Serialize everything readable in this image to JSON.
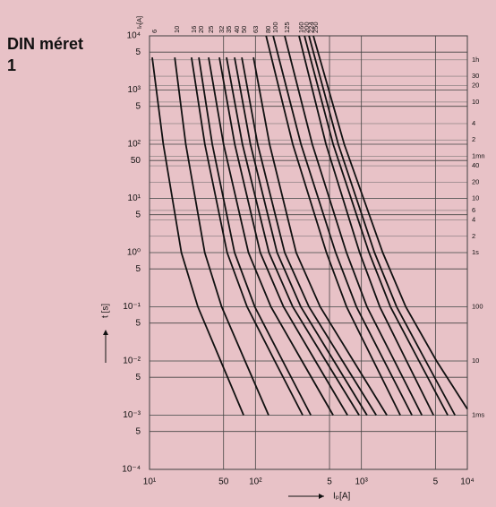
{
  "chart_data": {
    "type": "line",
    "title": "DIN méret",
    "subtitle": "1",
    "x_label": "Iₚ[A]",
    "y_label": "t [s]",
    "top_label": "Iₙ[A]",
    "log_x": true,
    "log_y": true,
    "grid": true,
    "color": "#111111",
    "xlim": [
      10,
      10000
    ],
    "ylim": [
      0.0001,
      10000
    ],
    "xticks": [
      {
        "value": 10,
        "label": "10¹"
      },
      50,
      {
        "value": 100,
        "label": "10²"
      },
      {
        "value": 500,
        "label": "5"
      },
      {
        "value": 1000,
        "label": "10³"
      },
      {
        "value": 5000,
        "label": "5"
      },
      {
        "value": 10000,
        "label": "10⁴"
      }
    ],
    "yticks": [
      {
        "value": 10000,
        "label": "10⁴"
      },
      {
        "value": 5000,
        "label": "5"
      },
      {
        "value": 1000,
        "label": "10³"
      },
      {
        "value": 500,
        "label": "5"
      },
      {
        "value": 100,
        "label": "10²"
      },
      50,
      {
        "value": 10,
        "label": "10¹"
      },
      5,
      {
        "value": 1,
        "label": "10⁰"
      },
      {
        "value": 0.5,
        "label": "5"
      },
      {
        "value": 0.1,
        "label": "10⁻¹"
      },
      {
        "value": 0.05,
        "label": "5"
      },
      {
        "value": 0.01,
        "label": "10⁻²"
      },
      {
        "value": 0.005,
        "label": "5"
      },
      {
        "value": 0.001,
        "label": "10⁻³"
      },
      {
        "value": 0.0005,
        "label": "5"
      },
      {
        "value": 0.0001,
        "label": "10⁻⁴"
      }
    ],
    "y2lim": [
      0.0001,
      10000
    ],
    "y2ticks": [
      {
        "value": 3600,
        "label": "1h"
      },
      {
        "value": 1800,
        "label": "30"
      },
      {
        "value": 1200,
        "label": "20"
      },
      {
        "value": 600,
        "label": "10"
      },
      {
        "value": 240,
        "label": "4"
      },
      {
        "value": 120,
        "label": "2"
      },
      {
        "value": 60,
        "label": "1mn"
      },
      40,
      20,
      10,
      6,
      4,
      2,
      {
        "value": 1,
        "label": "1s"
      },
      {
        "value": 0.1,
        "label": "100"
      },
      {
        "value": 0.01,
        "label": "10"
      },
      {
        "value": 0.001,
        "label": "1ms"
      }
    ],
    "series": [
      {
        "name": "6",
        "x": [
          10.6,
          13.5,
          20.0,
          28.6,
          47.0,
          77.3
        ],
        "values": [
          4000,
          100,
          1,
          0.1,
          0.01,
          0.001
        ]
      },
      {
        "name": "10",
        "x": [
          17.3,
          22.0,
          33.2,
          48.0,
          79.8,
          133
        ],
        "values": [
          4000,
          100,
          1,
          0.1,
          0.01,
          0.001
        ]
      },
      {
        "name": "16",
        "x": [
          24.9,
          33.3,
          54.0,
          83.4,
          152,
          279
        ],
        "values": [
          4000,
          100,
          1,
          0.1,
          0.01,
          0.001
        ]
      },
      {
        "name": "20",
        "x": [
          29.2,
          39.1,
          63.5,
          98.6,
          181,
          333
        ],
        "values": [
          4000,
          100,
          1,
          0.1,
          0.01,
          0.001
        ]
      },
      {
        "name": "25",
        "x": [
          36.1,
          50.0,
          85.9,
          140,
          275,
          541
        ],
        "values": [
          4000,
          100,
          1,
          0.1,
          0.01,
          0.001
        ]
      },
      {
        "name": "32",
        "x": [
          45.6,
          63.7,
          111,
          184,
          368,
          738
        ],
        "values": [
          4000,
          100,
          1,
          0.1,
          0.01,
          0.001
        ]
      },
      {
        "name": "35",
        "x": [
          53.3,
          75.3,
          134,
          225,
          462,
          951
        ],
        "values": [
          4000,
          100,
          1,
          0.1,
          0.01,
          0.001
        ]
      },
      {
        "name": "40",
        "x": [
          63.5,
          89.7,
          160,
          268,
          551,
          1130
        ],
        "values": [
          4000,
          100,
          1,
          0.1,
          0.01,
          0.001
        ]
      },
      {
        "name": "50",
        "x": [
          74.3,
          105,
          189,
          320,
          664,
          1380
        ],
        "values": [
          4000,
          100,
          1,
          0.1,
          0.01,
          0.001
        ]
      },
      {
        "name": "63",
        "x": [
          95.7,
          136,
          242,
          408,
          841,
          1740
        ],
        "values": [
          4000,
          100,
          1,
          0.1,
          0.01,
          0.001
        ]
      },
      {
        "name": "80",
        "x": [
          126,
          225,
          468,
          724,
          1300,
          2330
        ],
        "values": [
          10000,
          100,
          1,
          0.1,
          0.01,
          0.001
        ]
      },
      {
        "name": "100",
        "x": [
          147,
          269,
          571,
          897,
          1640,
          3000
        ],
        "values": [
          10000,
          100,
          1,
          0.1,
          0.01,
          0.001
        ]
      },
      {
        "name": "125",
        "x": [
          189,
          344,
          723,
          1130,
          2050,
          3720
        ],
        "values": [
          10000,
          100,
          1,
          0.1,
          0.01,
          0.001
        ]
      },
      {
        "name": "160",
        "x": [
          258,
          463,
          962,
          1490,
          2670,
          4790
        ],
        "values": [
          10000,
          100,
          1,
          0.1,
          0.01,
          0.001
        ]
      },
      {
        "name": "200",
        "x": [
          290,
          541,
          1180,
          1880,
          3500,
          6530
        ],
        "values": [
          10000,
          100,
          1,
          0.1,
          0.01,
          0.001
        ]
      },
      {
        "name": "224",
        "x": [
          320,
          604,
          1330,
          2150,
          4050,
          7640
        ],
        "values": [
          10000,
          100,
          1,
          0.1,
          0.01,
          0.001
        ]
      },
      {
        "name": "250",
        "x": [
          352,
          689,
          1590,
          2620,
          5120,
          10000
        ],
        "values": [
          10000,
          100,
          1,
          0.1,
          0.01,
          0.0013
        ]
      }
    ]
  }
}
